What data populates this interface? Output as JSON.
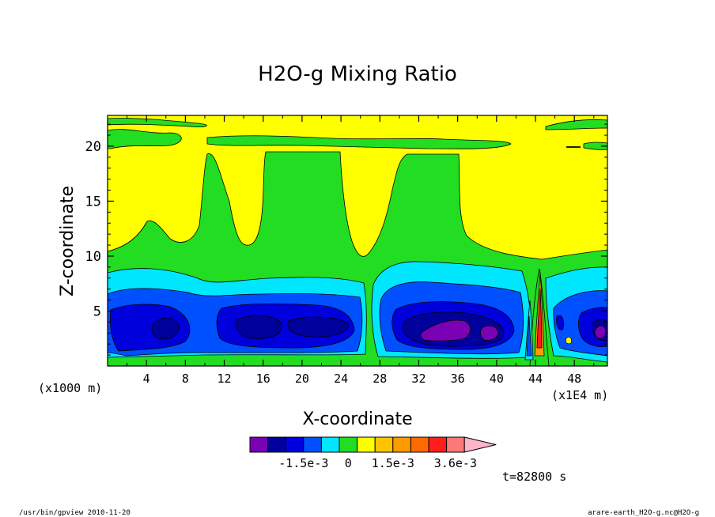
{
  "chart_data": {
    "type": "heatmap",
    "title": "H2O-g Mixing Ratio",
    "xlabel": "X-coordinate",
    "ylabel": "Z-coordinate",
    "x_unit_left": "(x1000 m)",
    "x_unit_right": "(x1E4 m)",
    "xlim": [
      0,
      51.4
    ],
    "ylim": [
      0,
      22.8
    ],
    "xticks": [
      4,
      8,
      12,
      16,
      20,
      24,
      28,
      32,
      36,
      40,
      44,
      48
    ],
    "yticks": [
      5,
      10,
      15,
      20
    ],
    "levels": [
      -0.0027,
      -0.0021,
      -0.0015,
      -0.0009,
      -0.0003,
      0.0003,
      0.0009,
      0.0015,
      0.0021,
      0.0027,
      0.0033,
      0.0039
    ],
    "colorbar_colors": [
      "#7a00b4",
      "#00009c",
      "#0000dc",
      "#0050ff",
      "#00e6ff",
      "#22dd22",
      "#ffff00",
      "#ffc400",
      "#ff9a00",
      "#ff6a00",
      "#ff1e1e",
      "#ff7878",
      "#ffb4c8"
    ],
    "colorbar_labels": [
      "-1.5e-3",
      "0",
      "1.5e-3",
      "3.6e-3"
    ],
    "time_label": "t=82800 s",
    "footer_left": "/usr/bin/gpview  2010-11-20",
    "footer_right": "arare-earth_H2O-g.nc@H2O-g"
  }
}
